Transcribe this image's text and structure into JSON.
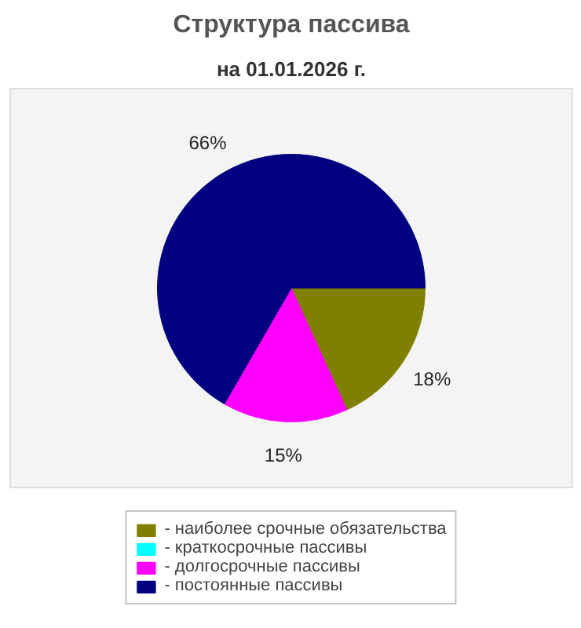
{
  "chart_data": {
    "type": "pie",
    "title": "Структура пассива",
    "subtitle": "на 01.01.2026 г.",
    "categories": [
      "- наиболее срочные обязательства",
      "- краткосрочные пассивы",
      "- долгосрочные пассивы",
      "- постоянные пассивы"
    ],
    "values": [
      18,
      0,
      15,
      66
    ],
    "colors": [
      "#808000",
      "#00ffff",
      "#ff00ff",
      "#000080"
    ],
    "value_labels": [
      "18%",
      null,
      "15%",
      "66%"
    ],
    "legend": "bottom"
  }
}
